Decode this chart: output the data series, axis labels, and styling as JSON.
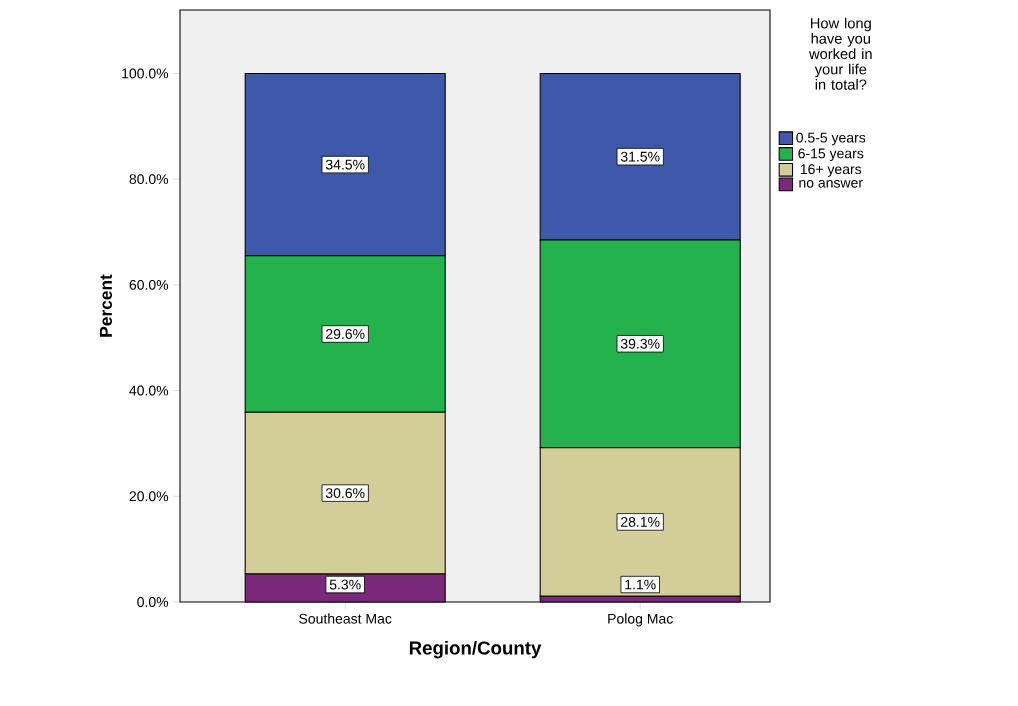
{
  "chart_data": {
    "type": "bar",
    "stacked": true,
    "xlabel": "Region/County",
    "ylabel": "Percent",
    "legend_title": "How long have you worked in your life in total?",
    "legend": "right",
    "categories": [
      "Southeast Mac",
      "Polog Mac"
    ],
    "ylim": [
      0,
      112
    ],
    "yticks": [
      {
        "value": 0,
        "label": "0.0%"
      },
      {
        "value": 20,
        "label": "20.0%"
      },
      {
        "value": 40,
        "label": "40.0%"
      },
      {
        "value": 60,
        "label": "60.0%"
      },
      {
        "value": 80,
        "label": "80.0%"
      },
      {
        "value": 100,
        "label": "100.0%"
      }
    ],
    "series": [
      {
        "name": "no answer",
        "color": "#7b2a7b",
        "values": [
          5.3,
          1.1
        ],
        "value_labels": [
          "5.3%",
          "1.1%"
        ]
      },
      {
        "name": "16+ years",
        "color": "#d3ce97",
        "values": [
          30.6,
          28.1
        ],
        "value_labels": [
          "30.6%",
          "28.1%"
        ]
      },
      {
        "name": "6-15 years",
        "color": "#23b24b",
        "values": [
          29.6,
          39.3
        ],
        "value_labels": [
          "29.6%",
          "39.3%"
        ]
      },
      {
        "name": "0.5-5 years",
        "color": "#3e58ac",
        "values": [
          34.5,
          31.5
        ],
        "value_labels": [
          "34.5%",
          "31.5%"
        ]
      }
    ]
  }
}
